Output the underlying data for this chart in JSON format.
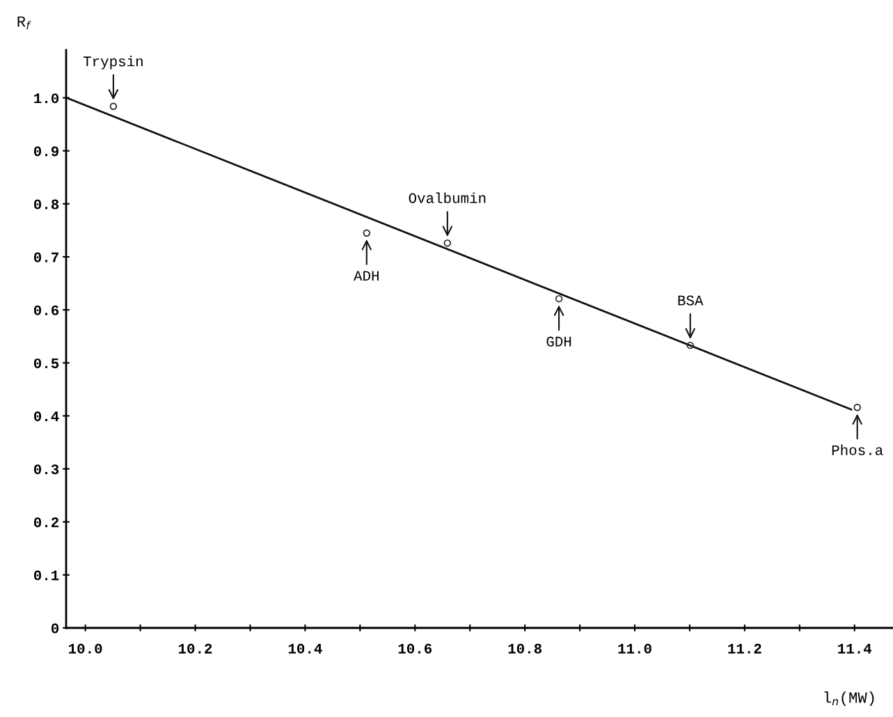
{
  "chart_data": {
    "type": "scatter",
    "xlabel": "l$_{n}$(MW)",
    "ylabel": "R$_{f}$",
    "xlim": [
      9.965,
      11.47
    ],
    "ylim": [
      0,
      1.09
    ],
    "xticks": [
      {
        "value": 10,
        "label": "10.0"
      },
      {
        "value": 10.1,
        "label": null
      },
      10.2,
      {
        "value": 10.3,
        "label": null
      },
      10.4,
      {
        "value": 10.5,
        "label": null
      },
      10.6,
      {
        "value": 10.7,
        "label": null
      },
      10.8,
      {
        "value": 10.9,
        "label": null
      },
      {
        "value": 11,
        "label": "11.0"
      },
      {
        "value": 11.1,
        "label": null
      },
      11.2,
      {
        "value": 11.3,
        "label": null
      },
      11.4
    ],
    "yticks": [
      0,
      0.1,
      0.2,
      0.3,
      0.4,
      0.5,
      0.6,
      0.7,
      0.8,
      0.9,
      {
        "value": 1,
        "label": "1.0"
      }
    ],
    "grid": false,
    "marker": "circle",
    "series": [
      {
        "color": "#222222",
        "x": [
          10.051,
          10.512,
          10.659,
          10.862,
          11.101,
          11.405
        ],
        "values": [
          0.984,
          0.745,
          0.726,
          0.621,
          0.533,
          0.416
        ]
      },
      {
        "type": "line",
        "color": "#111111",
        "marker": "none",
        "line_style": "solid",
        "x": [
          9.966,
          11.394
        ],
        "values": [
          1.0,
          0.412
        ]
      }
    ],
    "annotations": [
      {
        "text": "Trypsin",
        "x": 10.051,
        "y": 0.984
      },
      {
        "text": "ADH",
        "x": 10.512,
        "y": 0.745
      },
      {
        "text": "Ovalbumin",
        "x": 10.659,
        "y": 0.726
      },
      {
        "text": "GDH",
        "x": 10.862,
        "y": 0.621
      },
      {
        "text": "BSA",
        "x": 11.101,
        "y": 0.533
      },
      {
        "text": "Phos.a",
        "x": 11.405,
        "y": 0.416
      }
    ]
  }
}
